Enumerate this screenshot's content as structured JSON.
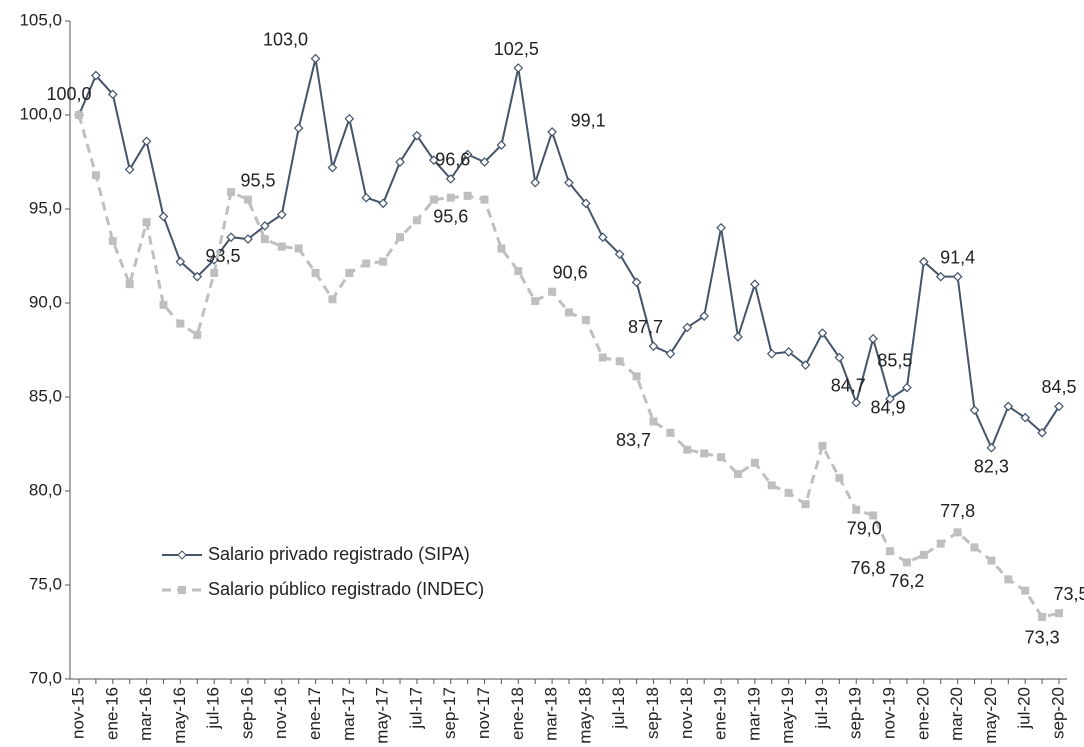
{
  "chart_data": {
    "type": "line",
    "categories": [
      "nov-15",
      null,
      "ene-16",
      null,
      "mar-16",
      null,
      "may-16",
      null,
      "jul-16",
      null,
      "sep-16",
      null,
      "nov-16",
      null,
      "ene-17",
      null,
      "mar-17",
      null,
      "may-17",
      null,
      "jul-17",
      null,
      "sep-17",
      null,
      "nov-17",
      null,
      "ene-18",
      null,
      "mar-18",
      null,
      "may-18",
      null,
      "jul-18",
      null,
      "sep-18",
      null,
      "nov-18",
      null,
      "ene-19",
      null,
      "mar-19",
      null,
      "may-19",
      null,
      "jul-19",
      null,
      "sep-19",
      null,
      "nov-19",
      null,
      "ene-20",
      null,
      "mar-20",
      null,
      "may-20",
      null,
      "jul-20",
      null,
      "sep-20"
    ],
    "series": [
      {
        "name": "Salario privado registrado (SIPA)",
        "color": "#44546a",
        "values": [
          100.0,
          102.1,
          101.1,
          97.1,
          98.6,
          94.6,
          92.2,
          91.4,
          92.3,
          93.5,
          93.4,
          94.1,
          94.7,
          99.3,
          103.0,
          97.2,
          99.8,
          95.6,
          95.3,
          97.5,
          98.9,
          97.6,
          96.6,
          97.9,
          97.5,
          98.4,
          102.5,
          96.4,
          99.1,
          96.4,
          95.3,
          93.5,
          92.6,
          91.1,
          87.7,
          87.3,
          88.7,
          89.3,
          94.0,
          88.2,
          91.0,
          87.3,
          87.4,
          86.7,
          88.4,
          87.1,
          84.7,
          88.1,
          84.9,
          85.5,
          92.2,
          91.4,
          91.4,
          84.3,
          82.3,
          84.5,
          83.9,
          83.1,
          84.5
        ],
        "value_labels": [
          "100,0",
          null,
          null,
          null,
          null,
          null,
          null,
          null,
          null,
          "93,5",
          null,
          null,
          null,
          null,
          "103,0",
          null,
          null,
          null,
          null,
          null,
          null,
          null,
          "96,6",
          null,
          null,
          null,
          "102,5",
          null,
          "99,1",
          null,
          null,
          null,
          null,
          null,
          "87,7",
          null,
          null,
          null,
          null,
          null,
          null,
          null,
          null,
          null,
          null,
          null,
          "84,7",
          null,
          "84,9",
          "85,5",
          null,
          null,
          "91,4",
          null,
          "82,3",
          null,
          null,
          null,
          "84,5"
        ]
      },
      {
        "name": "Salario público registrado (INDEC)",
        "color": "#bfbfbf",
        "values": [
          100.0,
          96.8,
          93.3,
          91.0,
          94.3,
          89.9,
          88.9,
          88.3,
          91.6,
          95.9,
          95.5,
          93.4,
          93.0,
          92.9,
          91.6,
          90.2,
          91.6,
          92.1,
          92.2,
          93.5,
          94.4,
          95.5,
          95.6,
          95.7,
          95.5,
          92.9,
          91.7,
          90.1,
          90.6,
          89.5,
          89.1,
          87.1,
          86.9,
          86.1,
          83.7,
          83.1,
          82.2,
          82.0,
          81.8,
          80.9,
          81.5,
          80.3,
          79.9,
          79.3,
          82.4,
          80.7,
          79.0,
          78.7,
          76.8,
          76.2,
          76.6,
          77.2,
          77.8,
          77.0,
          76.3,
          75.3,
          74.7,
          73.3,
          73.5
        ],
        "value_labels": [
          null,
          null,
          null,
          null,
          null,
          null,
          null,
          null,
          null,
          null,
          "95,5",
          null,
          null,
          null,
          null,
          null,
          null,
          null,
          null,
          null,
          null,
          null,
          "95,6",
          null,
          null,
          null,
          null,
          null,
          "90,6",
          null,
          null,
          null,
          null,
          null,
          "83,7",
          null,
          null,
          null,
          null,
          null,
          null,
          null,
          null,
          null,
          null,
          null,
          "79,0",
          null,
          "76,8",
          "76,2",
          null,
          null,
          "77,8",
          null,
          null,
          null,
          null,
          "73,3",
          "73,5"
        ]
      }
    ],
    "ylim": [
      70,
      105
    ],
    "yticks": [
      {
        "value": 70,
        "label": "70,0"
      },
      {
        "value": 75,
        "label": "75,0"
      },
      {
        "value": 80,
        "label": "80,0"
      },
      {
        "value": 85,
        "label": "85,0"
      },
      {
        "value": 90,
        "label": "90,0"
      },
      {
        "value": 95,
        "label": "95,0"
      },
      {
        "value": 100,
        "label": "100,0"
      },
      {
        "value": 105,
        "label": "105,0"
      }
    ],
    "grid": false
  }
}
